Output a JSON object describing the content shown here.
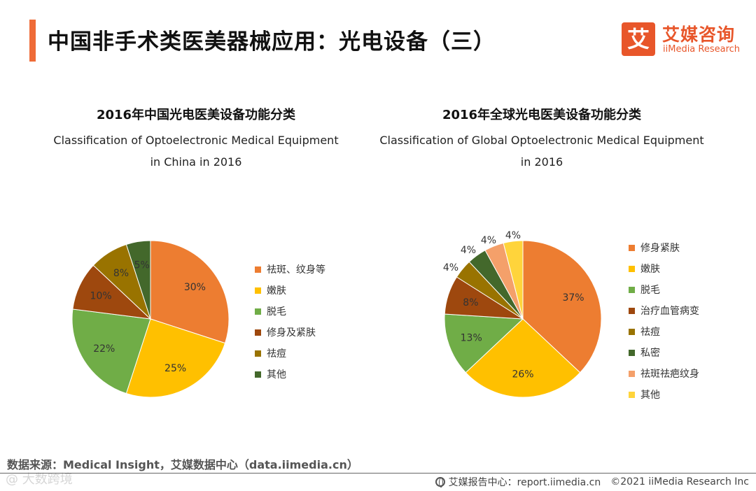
{
  "header": {
    "title": "中国非手术类医美器械应用：光电设备（三）",
    "logo": {
      "mark": "艾",
      "name_cn": "艾媒咨询",
      "name_en": "iiMedia Research"
    }
  },
  "chart_data": [
    {
      "type": "pie",
      "title": "2016年中国光电医美设备功能分类",
      "subtitle_en": "Classification of Optoelectronic Medical Equipment in China in 2016",
      "subtitle_en_lines": [
        "Classification of Optoelectronic Medical Equipment",
        "in China in 2016"
      ],
      "legend_position": "right",
      "slices": [
        {
          "label": "祛斑、纹身等",
          "value": 30,
          "display": "30%",
          "color": "#ed7d31"
        },
        {
          "label": "嫩肤",
          "value": 25,
          "display": "25%",
          "color": "#ffc000"
        },
        {
          "label": "脱毛",
          "value": 22,
          "display": "22%",
          "color": "#70ad47"
        },
        {
          "label": "修身及紧肤",
          "value": 10,
          "display": "10%",
          "color": "#9e480e"
        },
        {
          "label": "祛痘",
          "value": 8,
          "display": "8%",
          "color": "#997300"
        },
        {
          "label": "其他",
          "value": 5,
          "display": "5%",
          "color": "#43682b"
        }
      ]
    },
    {
      "type": "pie",
      "title": "2016年全球光电医美设备功能分类",
      "subtitle_en": "Classification of Global Optoelectronic Medical Equipment in 2016",
      "subtitle_en_lines": [
        "Classification of Global Optoelectronic Medical Equipment",
        "in 2016"
      ],
      "legend_position": "right",
      "slices": [
        {
          "label": "修身紧肤",
          "value": 37,
          "display": "37%",
          "color": "#ed7d31"
        },
        {
          "label": "嫩肤",
          "value": 26,
          "display": "26%",
          "color": "#ffc000"
        },
        {
          "label": "脱毛",
          "value": 13,
          "display": "13%",
          "color": "#70ad47"
        },
        {
          "label": "治疗血管病变",
          "value": 8,
          "display": "8%",
          "color": "#9e480e"
        },
        {
          "label": "祛痘",
          "value": 4,
          "display": "4%",
          "color": "#997300"
        },
        {
          "label": "私密",
          "value": 4,
          "display": "4%",
          "color": "#43682b"
        },
        {
          "label": "祛斑祛疤纹身",
          "value": 4,
          "display": "4%",
          "color": "#f4a06a"
        },
        {
          "label": "其他",
          "value": 4,
          "display": "4%",
          "color": "#ffd43b"
        }
      ]
    }
  ],
  "footer": {
    "source": "数据来源：Medical Insight，艾媒数据中心（data.iimedia.cn）",
    "watermark": "@ 大数跨境",
    "report": "艾媒报告中心：report.iimedia.cn",
    "copyright": "©2021  iiMedia Research  Inc"
  }
}
